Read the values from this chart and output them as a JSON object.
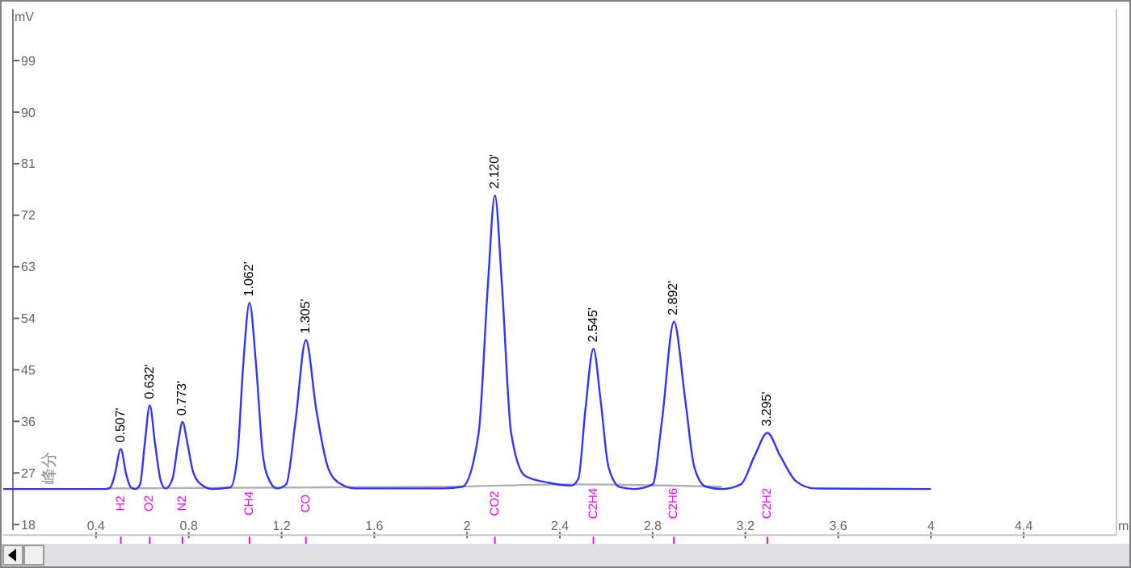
{
  "chart_data": {
    "type": "line",
    "ylabel": "mV",
    "xlabel": "m",
    "xlim": [
      0,
      4.8
    ],
    "ylim": [
      17,
      108
    ],
    "xticks": [
      0.4,
      0.8,
      1.2,
      1.6,
      2,
      2.4,
      2.8,
      3.2,
      3.6,
      4,
      4.4
    ],
    "yticks": [
      18,
      27,
      36,
      45,
      54,
      63,
      72,
      81,
      90,
      99
    ],
    "grid": false,
    "marker": "none",
    "line_style": "solid",
    "series": [
      {
        "color": "#b0b0b0",
        "x": [
          0.45,
          1.9,
          2.45,
          3.1
        ],
        "values": [
          24.3,
          24.6,
          25.0,
          24.6
        ]
      },
      {
        "color": "#3333ff",
        "x": [
          0,
          0.44,
          0.46,
          0.48,
          0.507,
          0.53,
          0.55,
          0.57,
          0.59,
          0.61,
          0.632,
          0.655,
          0.68,
          0.7,
          0.73,
          0.755,
          0.773,
          0.795,
          0.82,
          0.86,
          0.9,
          0.98,
          1.01,
          1.035,
          1.062,
          1.09,
          1.12,
          1.15,
          1.18,
          1.22,
          1.26,
          1.305,
          1.35,
          1.4,
          1.45,
          1.52,
          1.9,
          1.98,
          2.05,
          2.09,
          2.12,
          2.15,
          2.19,
          2.25,
          2.35,
          2.45,
          2.48,
          2.51,
          2.545,
          2.575,
          2.61,
          2.66,
          2.72,
          2.8,
          2.84,
          2.892,
          2.94,
          2.98,
          3.03,
          3.1,
          3.18,
          3.24,
          3.295,
          3.35,
          3.42,
          3.5,
          4
        ],
        "values": [
          24.2,
          24.2,
          24.4,
          26.5,
          31.2,
          26.8,
          24.5,
          24.2,
          25,
          32,
          38.8,
          32,
          25.5,
          24.3,
          26,
          32.5,
          35.9,
          32,
          27,
          24.8,
          24.2,
          24.5,
          30,
          46,
          56.7,
          46,
          30,
          25.5,
          24.3,
          25,
          36,
          50.2,
          38,
          28,
          25.2,
          24.3,
          24.3,
          24.6,
          34,
          60,
          75.5,
          60,
          34,
          26.5,
          25.3,
          24.8,
          26,
          38,
          48.7,
          40,
          28,
          24.5,
          24.2,
          25,
          36,
          53.4,
          40,
          28,
          24.6,
          24.2,
          25,
          30,
          34.0,
          30,
          25.5,
          24.3,
          24.2
        ]
      }
    ],
    "annotations": [
      {
        "text": "0.507'",
        "x": 0.507,
        "y": 31.2
      },
      {
        "text": "0.632'",
        "x": 0.632,
        "y": 38.8
      },
      {
        "text": "0.773'",
        "x": 0.773,
        "y": 35.9
      },
      {
        "text": "1.062'",
        "x": 1.062,
        "y": 56.7
      },
      {
        "text": "1.305'",
        "x": 1.305,
        "y": 50.2
      },
      {
        "text": "2.120'",
        "x": 2.12,
        "y": 75.5
      },
      {
        "text": "2.545'",
        "x": 2.545,
        "y": 48.7
      },
      {
        "text": "2.892'",
        "x": 2.892,
        "y": 53.4
      },
      {
        "text": "3.295'",
        "x": 3.295,
        "y": 34.0
      },
      "H2",
      "O2",
      "N2",
      "CH4",
      "CO",
      "CO2",
      "C2H4",
      "C2H6",
      "C2H2",
      "峰分"
    ]
  }
}
